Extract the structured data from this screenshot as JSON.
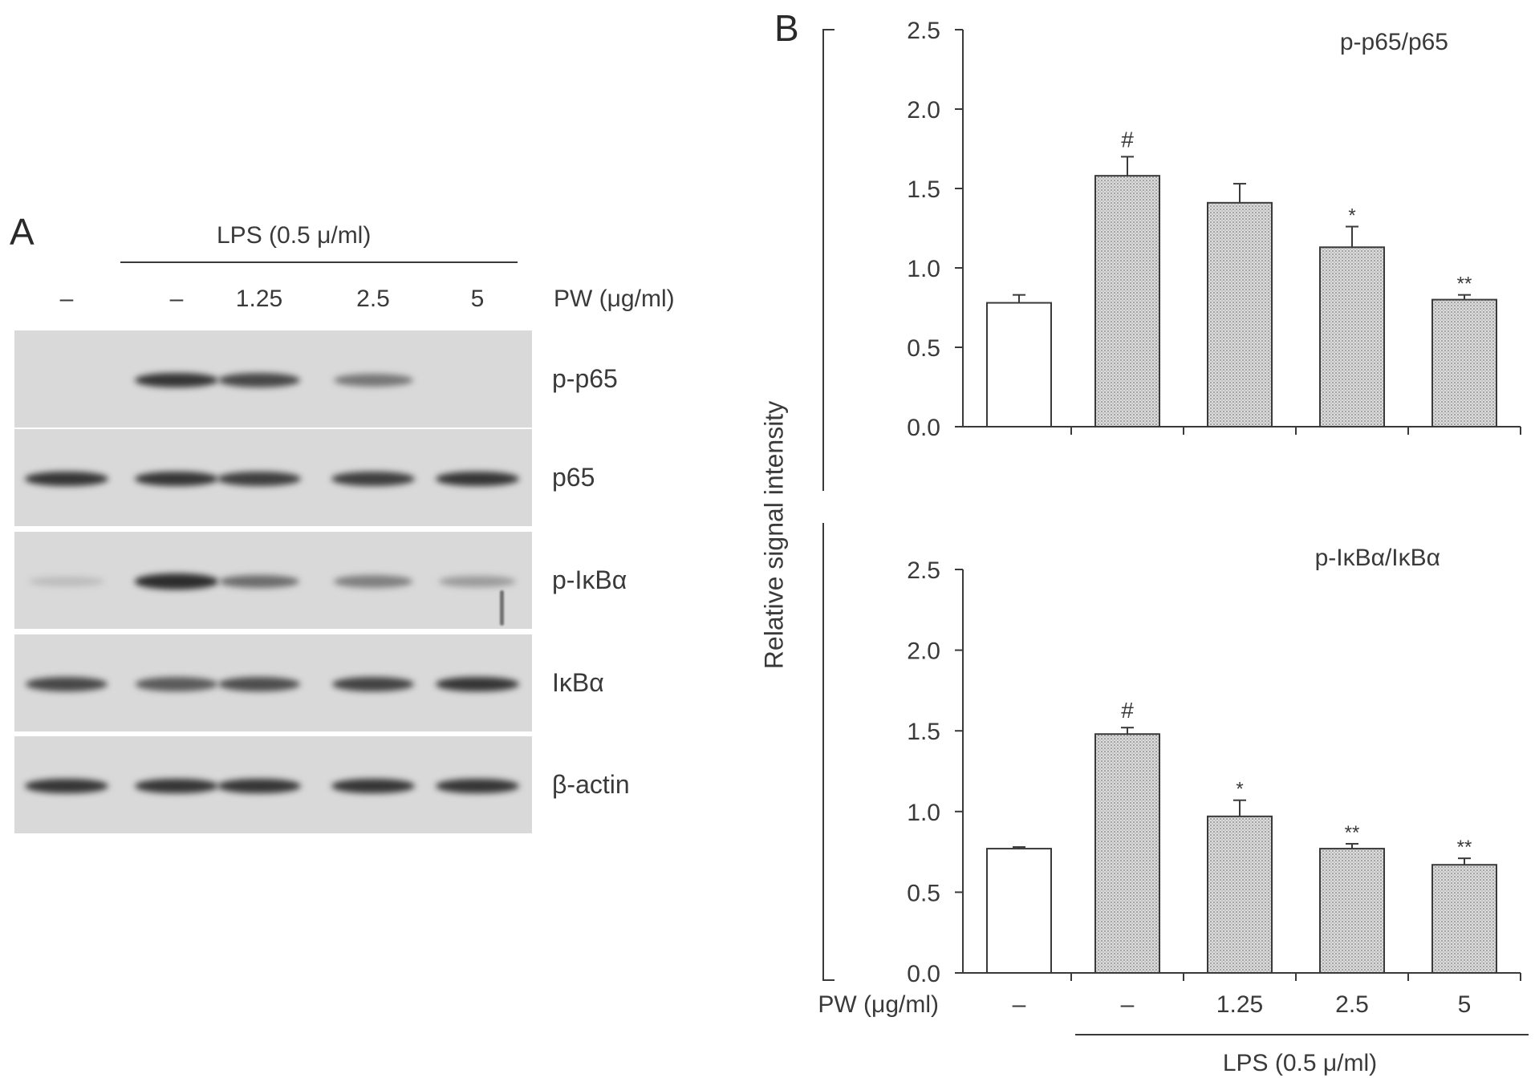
{
  "panel_a": {
    "letter": "A",
    "lps_label": "LPS (0.5 μ/ml)",
    "pw_label": "PW (μg/ml)",
    "lanes": [
      "–",
      "–",
      "1.25",
      "2.5",
      "5"
    ],
    "rows": [
      {
        "label": "p-p65",
        "intensities": [
          0.0,
          0.85,
          0.75,
          0.5,
          0.0
        ]
      },
      {
        "label": "p65",
        "intensities": [
          0.85,
          0.85,
          0.8,
          0.8,
          0.85
        ]
      },
      {
        "label": "p-IκBα",
        "intensities": [
          0.12,
          0.9,
          0.55,
          0.45,
          0.3
        ]
      },
      {
        "label": "IκBα",
        "intensities": [
          0.75,
          0.65,
          0.72,
          0.78,
          0.85
        ]
      },
      {
        "label": "β-actin",
        "intensities": [
          0.85,
          0.85,
          0.85,
          0.85,
          0.85
        ]
      }
    ]
  },
  "panel_b": {
    "letter": "B",
    "ylabel": "Relative signal intensity",
    "pw_label": "PW (μg/ml)",
    "lps_label": "LPS (0.5 μ/ml)",
    "categories": [
      "–",
      "–",
      "1.25",
      "2.5",
      "5"
    ]
  },
  "chart_data": [
    {
      "type": "bar",
      "title": "p-p65/p65",
      "categories": [
        "–",
        "–",
        "1.25",
        "2.5",
        "5"
      ],
      "values": [
        0.78,
        1.58,
        1.41,
        1.13,
        0.8
      ],
      "errors": [
        0.05,
        0.12,
        0.12,
        0.13,
        0.03
      ],
      "annotations": [
        "",
        "#",
        "",
        "*",
        "**"
      ],
      "yticks": [
        "0.0",
        "0.5",
        "1.0",
        "1.5",
        "2.0",
        "2.5"
      ],
      "ylim": [
        0,
        2.5
      ],
      "colors": {
        "control": "#ffffff",
        "treated": "#c8c8c8"
      }
    },
    {
      "type": "bar",
      "title": "p-IκBα/IκBα",
      "categories": [
        "–",
        "–",
        "1.25",
        "2.5",
        "5"
      ],
      "values": [
        0.77,
        1.48,
        0.97,
        0.77,
        0.67
      ],
      "errors": [
        0.01,
        0.04,
        0.1,
        0.03,
        0.04
      ],
      "annotations": [
        "",
        "#",
        "*",
        "**",
        "**"
      ],
      "yticks": [
        "0.0",
        "0.5",
        "1.0",
        "1.5",
        "2.0",
        "2.5"
      ],
      "ylim": [
        0,
        2.5
      ],
      "colors": {
        "control": "#ffffff",
        "treated": "#c8c8c8"
      }
    }
  ]
}
